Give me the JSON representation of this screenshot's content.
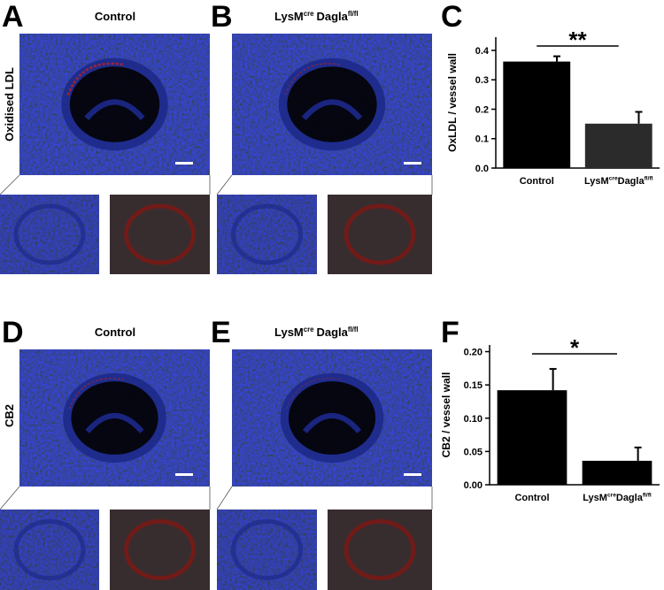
{
  "panels": {
    "letters": [
      "A",
      "B",
      "C",
      "D",
      "E",
      "F"
    ],
    "control_title": "Control",
    "knockout_title": [
      "LysM",
      {
        "sup": "cre"
      },
      "Dagla",
      {
        "sup": "fl/fl"
      }
    ],
    "row_labels": [
      "Oxidised LDL",
      "CB2"
    ]
  },
  "chart_data": [
    {
      "type": "bar",
      "ylabel": "OxLDL / vessel wall",
      "categories": [
        "Control",
        [
          "LysM",
          {
            "sup": "cre"
          },
          "Dagla",
          {
            "sup": "fl/fl"
          }
        ]
      ],
      "values": [
        0.362,
        0.151
      ],
      "errors": [
        0.018,
        0.04
      ],
      "colors": [
        "#000000",
        "#2b2b2b"
      ],
      "ylim": [
        0,
        0.445
      ],
      "yticks": [
        {
          "value": 0,
          "label": "0.0"
        },
        0.1,
        0.2,
        0.3,
        0.4
      ],
      "significance": "**"
    },
    {
      "type": "bar",
      "ylabel": "CB2 / vessel wall",
      "categories": [
        "Control",
        [
          "LysM",
          {
            "sup": "cre"
          },
          "Dagla",
          {
            "sup": "fl/fl"
          }
        ]
      ],
      "values": [
        0.142,
        0.036
      ],
      "errors": [
        0.032,
        0.02
      ],
      "colors": [
        "#000000",
        "#000000"
      ],
      "ylim": [
        0,
        0.21
      ],
      "yticks": [
        {
          "value": 0,
          "label": "0.00"
        },
        0.05,
        {
          "value": 0.1,
          "label": "0.10"
        },
        0.15,
        {
          "value": 0.2,
          "label": "0.20"
        }
      ],
      "significance": "*"
    }
  ]
}
